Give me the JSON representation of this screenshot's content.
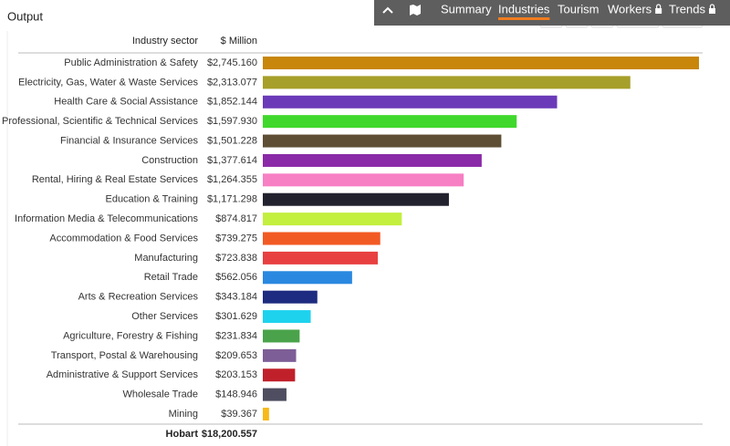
{
  "nav": {
    "tabs": [
      "Summary",
      "Industries",
      "Tourism",
      "Workers",
      "Trends"
    ],
    "active": 1
  },
  "chart_data": {
    "type": "bar",
    "orientation": "horizontal",
    "title": "Output",
    "category_header": "Industry sector",
    "value_header": "$ Million",
    "categories": [
      "Public Administration & Safety",
      "Electricity, Gas, Water & Waste Services",
      "Health Care & Social Assistance",
      "Professional, Scientific & Technical Services",
      "Financial & Insurance Services",
      "Construction",
      "Rental, Hiring & Real Estate Services",
      "Education & Training",
      "Information Media & Telecommunications",
      "Accommodation & Food Services",
      "Manufacturing",
      "Retail Trade",
      "Arts & Recreation Services",
      "Other Services",
      "Agriculture, Forestry & Fishing",
      "Transport, Postal & Warehousing",
      "Administrative & Support Services",
      "Wholesale Trade",
      "Mining"
    ],
    "values": [
      2745.16,
      2313.077,
      1852.144,
      1597.93,
      1501.228,
      1377.614,
      1264.355,
      1171.298,
      874.817,
      739.275,
      723.838,
      562.056,
      343.184,
      301.629,
      231.834,
      209.653,
      203.153,
      148.946,
      39.367
    ],
    "value_labels": [
      "$2,745.160",
      "$2,313.077",
      "$1,852.144",
      "$1,597.930",
      "$1,501.228",
      "$1,377.614",
      "$1,264.355",
      "$1,171.298",
      "$874.817",
      "$739.275",
      "$723.838",
      "$562.056",
      "$343.184",
      "$301.629",
      "$231.834",
      "$209.653",
      "$203.153",
      "$148.946",
      "$39.367"
    ],
    "colors": [
      "#c8860a",
      "#a69f2a",
      "#6a3ab8",
      "#40d82c",
      "#5e4e34",
      "#8a2aa8",
      "#f77fc3",
      "#22222f",
      "#c3ef3e",
      "#f25a24",
      "#e84040",
      "#2a88e0",
      "#1d2b80",
      "#1ed2ee",
      "#4aa34a",
      "#7d5e96",
      "#c0202a",
      "#4e4e60",
      "#f7b81a"
    ],
    "total": {
      "name": "Hobart",
      "value": "$18,200.557"
    }
  }
}
